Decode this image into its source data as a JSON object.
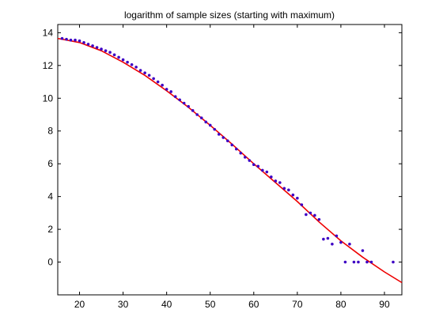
{
  "chart_data": {
    "type": "scatter",
    "title": "logarithm of sample sizes (starting with maximum)",
    "xlabel": "",
    "ylabel": "",
    "xlim": [
      15,
      94
    ],
    "ylim": [
      -2,
      14.5
    ],
    "xticks": [
      20,
      30,
      40,
      50,
      60,
      70,
      80,
      90
    ],
    "yticks": [
      0,
      2,
      4,
      6,
      8,
      10,
      12,
      14
    ],
    "grid": false,
    "legend": "none",
    "colors": {
      "points": "#3d00c4",
      "line": "#ee0000",
      "axes": "#000000",
      "background": "#ffffff"
    },
    "series": [
      {
        "mark": "points",
        "x": [
          16,
          17,
          18,
          19,
          20,
          21,
          22,
          23,
          24,
          25,
          26,
          27,
          28,
          29,
          30,
          31,
          32,
          33,
          34,
          35,
          36,
          37,
          38,
          39,
          40,
          41,
          42,
          43,
          44,
          45,
          46,
          47,
          48,
          49,
          50,
          51,
          52,
          53,
          54,
          55,
          56,
          57,
          58,
          59,
          60,
          61,
          62,
          63,
          64,
          65,
          66,
          67,
          68,
          69,
          70,
          71,
          72,
          73,
          74,
          75,
          76,
          77,
          78,
          79,
          80,
          81,
          82,
          83,
          84,
          85,
          86,
          87,
          92
        ],
        "y": [
          13.65,
          13.6,
          13.55,
          13.55,
          13.5,
          13.4,
          13.3,
          13.2,
          13.1,
          13.0,
          12.9,
          12.8,
          12.65,
          12.5,
          12.35,
          12.2,
          12.05,
          11.9,
          11.7,
          11.55,
          11.4,
          11.2,
          11.0,
          10.8,
          10.55,
          10.4,
          10.1,
          9.9,
          9.7,
          9.5,
          9.25,
          9.0,
          8.8,
          8.55,
          8.35,
          8.1,
          7.8,
          7.6,
          7.4,
          7.15,
          6.9,
          6.65,
          6.4,
          6.2,
          5.95,
          5.85,
          5.6,
          5.5,
          5.2,
          4.95,
          4.85,
          4.5,
          4.4,
          4.1,
          3.9,
          3.5,
          2.9,
          3.0,
          2.85,
          2.6,
          1.4,
          1.45,
          1.1,
          1.6,
          1.2,
          0.0,
          1.1,
          0.0,
          0.0,
          0.7,
          0.0,
          0.0,
          0.0
        ]
      },
      {
        "mark": "line",
        "x": [
          15,
          20,
          25,
          30,
          35,
          40,
          45,
          50,
          55,
          60,
          65,
          70,
          75,
          80,
          85,
          90,
          94
        ],
        "y": [
          13.65,
          13.4,
          12.9,
          12.2,
          11.4,
          10.45,
          9.45,
          8.35,
          7.2,
          6.0,
          4.85,
          3.7,
          2.45,
          1.3,
          0.3,
          -0.6,
          -1.25
        ]
      }
    ]
  }
}
